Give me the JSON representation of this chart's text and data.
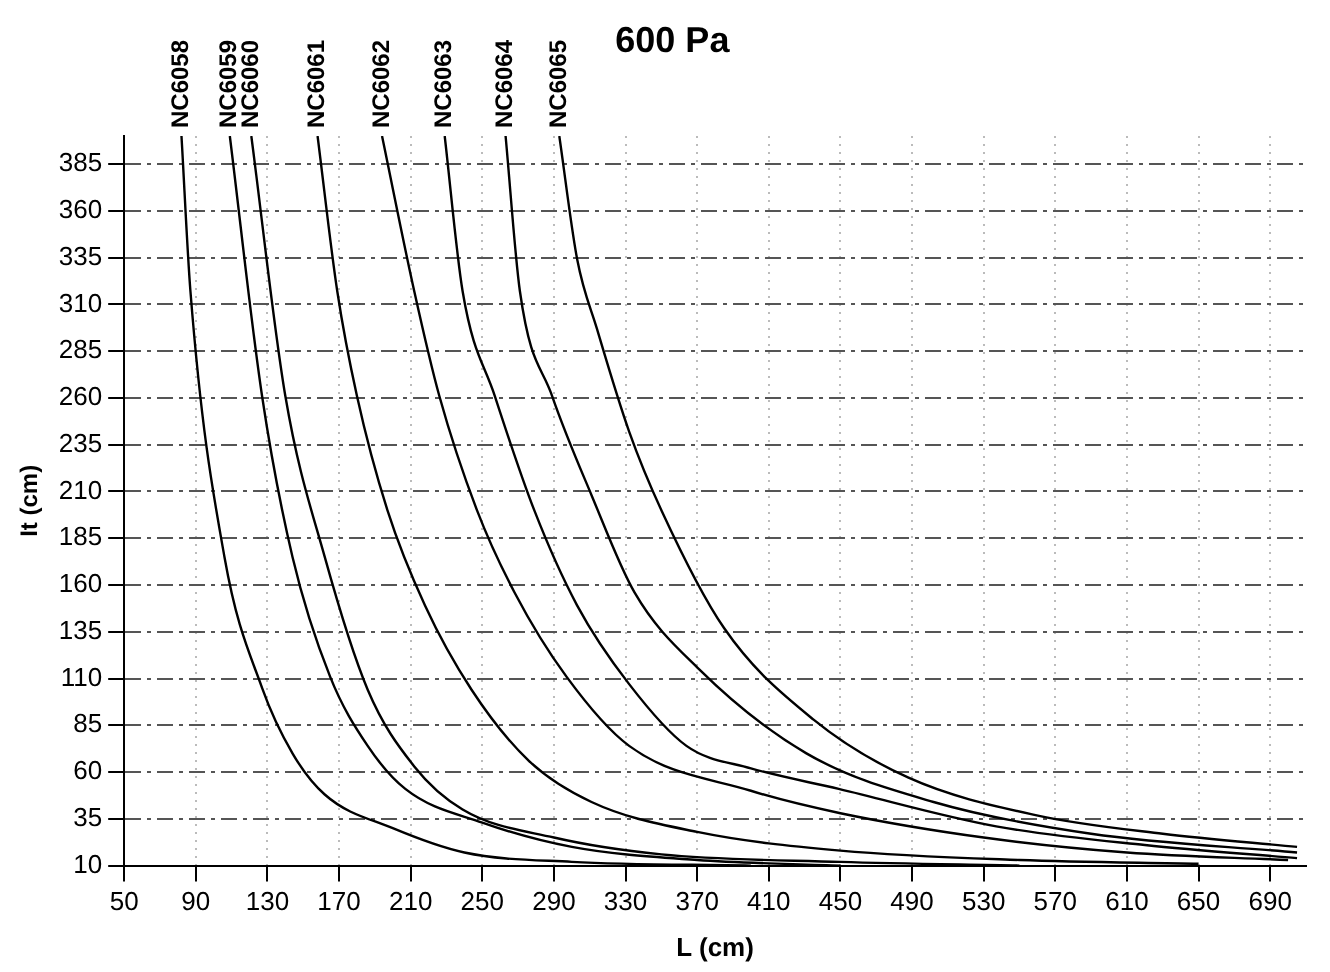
{
  "chart_data": {
    "type": "line",
    "title": "600 Pa",
    "xlabel": "L (cm)",
    "ylabel": "It (cm)",
    "xlim": [
      50,
      710
    ],
    "ylim": [
      10,
      400
    ],
    "xticks": [
      50,
      90,
      130,
      170,
      210,
      250,
      290,
      330,
      370,
      410,
      450,
      490,
      530,
      570,
      610,
      650,
      690
    ],
    "yticks": [
      10,
      35,
      60,
      85,
      110,
      135,
      160,
      185,
      210,
      235,
      260,
      285,
      310,
      335,
      360,
      385
    ],
    "grid": true,
    "legend": false,
    "marker": "none",
    "line_style": "solid",
    "series": [
      {
        "name": "NC6058",
        "color": "#000000",
        "x": [
          82,
          87,
          106,
          127,
          144,
          162,
          200,
          240,
          300,
          400
        ],
        "values": [
          400,
          317,
          175,
          105,
          70,
          48,
          30,
          17,
          12,
          10
        ]
      },
      {
        "name": "NC6059",
        "color": "#000000",
        "x": [
          109,
          127,
          144,
          165,
          186,
          207,
          250,
          300,
          370,
          450
        ],
        "values": [
          400,
          261,
          175,
          111,
          74,
          51,
          33,
          20,
          13,
          10
        ]
      },
      {
        "name": "NC6060",
        "color": "#000000",
        "x": [
          121,
          140,
          162,
          186,
          212,
          239,
          290,
          350,
          450,
          550
        ],
        "values": [
          400,
          261,
          175,
          104,
          63,
          40,
          25,
          16,
          12,
          10
        ]
      },
      {
        "name": "NC6061",
        "color": "#000000",
        "x": [
          158,
          169,
          180,
          197,
          218,
          244,
          276,
          311,
          370,
          450,
          550,
          650
        ],
        "values": [
          400,
          317,
          261,
          200,
          149,
          104,
          66,
          44,
          28,
          18,
          13,
          11
        ]
      },
      {
        "name": "NC6062",
        "color": "#000000",
        "x": [
          194,
          212,
          226,
          247,
          268,
          297,
          332,
          400,
          450,
          530,
          610,
          700
        ],
        "values": [
          400,
          317,
          261,
          200,
          156,
          111,
          74,
          50,
          38,
          25,
          17,
          13
        ]
      },
      {
        "name": "NC6063",
        "color": "#000000",
        "x": [
          229,
          239,
          257,
          279,
          303,
          332,
          364,
          400,
          449,
          537,
          620,
          705
        ],
        "values": [
          400,
          317,
          261,
          200,
          149,
          107,
          74,
          62,
          51,
          31,
          21,
          14
        ]
      },
      {
        "name": "NC6064",
        "color": "#000000",
        "x": [
          263,
          271,
          289,
          311,
          335,
          371,
          431,
          502,
          590,
          705
        ],
        "values": [
          400,
          317,
          261,
          208,
          156,
          115,
          70,
          44,
          27,
          17
        ]
      },
      {
        "name": "NC6065",
        "color": "#000000",
        "x": [
          293,
          303,
          314,
          332,
          350,
          385,
          435,
          488,
          559,
          630,
          705
        ],
        "values": [
          400,
          334,
          297,
          242,
          200,
          137,
          88,
          57,
          37,
          27,
          20
        ]
      }
    ]
  }
}
